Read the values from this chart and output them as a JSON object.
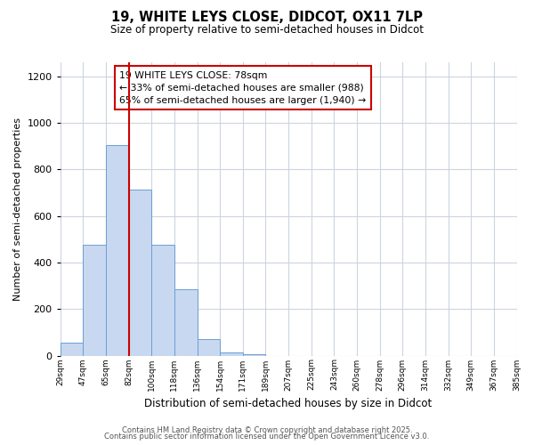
{
  "title1": "19, WHITE LEYS CLOSE, DIDCOT, OX11 7LP",
  "title2": "Size of property relative to semi-detached houses in Didcot",
  "xlabel": "Distribution of semi-detached houses by size in Didcot",
  "ylabel": "Number of semi-detached properties",
  "bar_values": [
    55,
    475,
    905,
    715,
    475,
    285,
    70,
    15,
    5,
    0,
    0,
    0,
    0,
    0,
    0,
    0,
    0,
    0,
    0,
    0
  ],
  "tick_labels": [
    "29sqm",
    "47sqm",
    "65sqm",
    "82sqm",
    "100sqm",
    "118sqm",
    "136sqm",
    "154sqm",
    "171sqm",
    "189sqm",
    "207sqm",
    "225sqm",
    "243sqm",
    "260sqm",
    "278sqm",
    "296sqm",
    "314sqm",
    "332sqm",
    "349sqm",
    "367sqm",
    "385sqm"
  ],
  "bar_color": "#c8d8f0",
  "bar_edge_color": "#6b9fd4",
  "vline_bin": 3,
  "vline_color": "#cc0000",
  "annotation_title": "19 WHITE LEYS CLOSE: 78sqm",
  "annotation_line1": "← 33% of semi-detached houses are smaller (988)",
  "annotation_line2": "65% of semi-detached houses are larger (1,940) →",
  "annotation_box_color": "#cc0000",
  "ylim": [
    0,
    1260
  ],
  "yticks": [
    0,
    200,
    400,
    600,
    800,
    1000,
    1200
  ],
  "footer1": "Contains HM Land Registry data © Crown copyright and database right 2025.",
  "footer2": "Contains public sector information licensed under the Open Government Licence v3.0.",
  "bg_color": "#ffffff",
  "grid_color": "#ccd5e0"
}
